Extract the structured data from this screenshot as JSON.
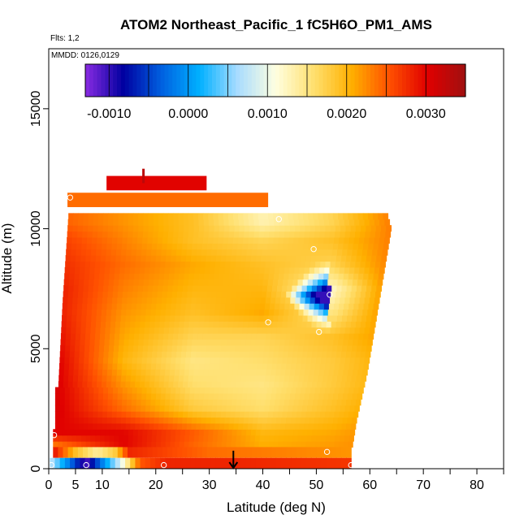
{
  "chart_data": {
    "type": "heatmap",
    "title": "ATOM2 Northeast_Pacific_1 fC5H6O_PM1_AMS",
    "flights_label": "Flts: 1,2",
    "mmdd_label": "MMDD: 0126,0129",
    "xlabel": "Latitude (deg N)",
    "ylabel": "Altitude (m)",
    "xlim": [
      0,
      85
    ],
    "ylim": [
      0,
      17500
    ],
    "x_ticks": [
      0,
      5,
      10,
      20,
      30,
      40,
      50,
      60,
      70,
      80
    ],
    "x_tick_labels": [
      "0",
      "5",
      "10",
      "20",
      "30",
      "40",
      "50",
      "60",
      "70",
      "80"
    ],
    "y_ticks": [
      0,
      5000,
      10000,
      15000
    ],
    "y_tick_labels": [
      "0",
      "5000",
      "10000",
      "15000"
    ],
    "colorbar": {
      "range": [
        -0.0013,
        0.0035
      ],
      "ticks": [
        -0.001,
        0.0,
        0.001,
        0.002,
        0.003
      ],
      "tick_labels": [
        "-0.0010",
        "0.0000",
        "0.0010",
        "0.0020",
        "0.0030"
      ],
      "colors": [
        "#8a2be2",
        "#0000a0",
        "#0060e0",
        "#00b0ff",
        "#a8dcff",
        "#ffffe0",
        "#ffe070",
        "#ffb000",
        "#ff5000",
        "#e00000",
        "#a01010"
      ]
    },
    "layers": [
      {
        "alt": 11900,
        "lat_start": 10.8,
        "lat_end": 29.5,
        "value": 0.003
      },
      {
        "alt": 11200,
        "lat_start": 3.5,
        "lat_end": 41.0,
        "value": 0.0024
      }
    ],
    "profile_cols_x": [
      1.0,
      14.0,
      27.0,
      40.0,
      53.0,
      63.5
    ],
    "profile_rows_y": [
      750,
      1500,
      2500,
      3500,
      4500,
      5500,
      6500,
      7500,
      8500,
      9500,
      10300
    ],
    "profile_values": [
      [
        0.002,
        0.003,
        0.0024,
        0.0021,
        0.0022,
        0.0023
      ],
      [
        0.003,
        0.003,
        0.0025,
        0.002,
        0.0021,
        0.0023
      ],
      [
        0.0031,
        0.0024,
        0.0018,
        0.0016,
        0.0019,
        0.0022
      ],
      [
        0.0031,
        0.0022,
        0.0016,
        0.0015,
        0.0018,
        0.0021
      ],
      [
        0.0031,
        0.002,
        0.0015,
        0.0016,
        0.0018,
        0.0021
      ],
      [
        0.003,
        0.0021,
        0.0017,
        0.0017,
        0.0019,
        0.0022
      ],
      [
        0.0029,
        0.0022,
        0.0019,
        0.0021,
        0.0015,
        0.0023
      ],
      [
        0.0029,
        0.0023,
        0.002,
        0.002,
        0.0012,
        0.0023
      ],
      [
        0.0028,
        0.0024,
        0.0021,
        0.0019,
        0.0017,
        0.0023
      ],
      [
        0.0027,
        0.0023,
        0.0019,
        0.0017,
        0.0019,
        0.0023
      ],
      [
        0.0025,
        0.0022,
        0.0019,
        0.0013,
        0.0017,
        0.0023
      ]
    ],
    "bottom_band": {
      "alt_range": [
        0,
        450
      ],
      "points": [
        {
          "lat": 0.5,
          "value": 0.0007
        },
        {
          "lat": 3.5,
          "value": -0.0001
        },
        {
          "lat": 7.0,
          "value": -0.0011
        },
        {
          "lat": 10.5,
          "value": 0.0
        },
        {
          "lat": 13.5,
          "value": 0.0009
        },
        {
          "lat": 17.0,
          "value": 0.0025
        },
        {
          "lat": 22.0,
          "value": 0.0028
        },
        {
          "lat": 35.0,
          "value": 0.0028
        },
        {
          "lat": 55.5,
          "value": 0.0027
        }
      ]
    },
    "low_band": {
      "alt_range": [
        450,
        900
      ],
      "points": [
        {
          "lat": 1.0,
          "value": 0.0029
        },
        {
          "lat": 5.0,
          "value": 0.0019
        },
        {
          "lat": 9.0,
          "value": 0.0014
        },
        {
          "lat": 12.5,
          "value": 0.0018
        },
        {
          "lat": 15.0,
          "value": 0.0028
        },
        {
          "lat": 30.0,
          "value": 0.0024
        },
        {
          "lat": 56.0,
          "value": 0.0022
        }
      ]
    },
    "anomaly": {
      "lat_center": 50.5,
      "lat_halfwidth": 6.5,
      "alt_center": 7200,
      "alt_halfwidth": 1500,
      "value": -0.001
    },
    "spike": {
      "lat": 17.7,
      "alt_range": [
        11900,
        12500
      ],
      "value": 0.0033
    },
    "sample_points": [
      {
        "lat": 4.0,
        "alt": 11300
      },
      {
        "lat": 43.0,
        "alt": 10400
      },
      {
        "lat": 49.5,
        "alt": 9150
      },
      {
        "lat": 52.5,
        "alt": 7250
      },
      {
        "lat": 41.0,
        "alt": 6100
      },
      {
        "lat": 50.5,
        "alt": 5700
      },
      {
        "lat": 1.0,
        "alt": 1400
      },
      {
        "lat": 52.0,
        "alt": 700
      },
      {
        "lat": 0.5,
        "alt": 150
      },
      {
        "lat": 7.0,
        "alt": 150
      },
      {
        "lat": 21.5,
        "alt": 150
      },
      {
        "lat": 56.5,
        "alt": 150
      }
    ],
    "arrow": {
      "lat": 34.5,
      "alt_from": 750,
      "alt_to": 0
    }
  }
}
